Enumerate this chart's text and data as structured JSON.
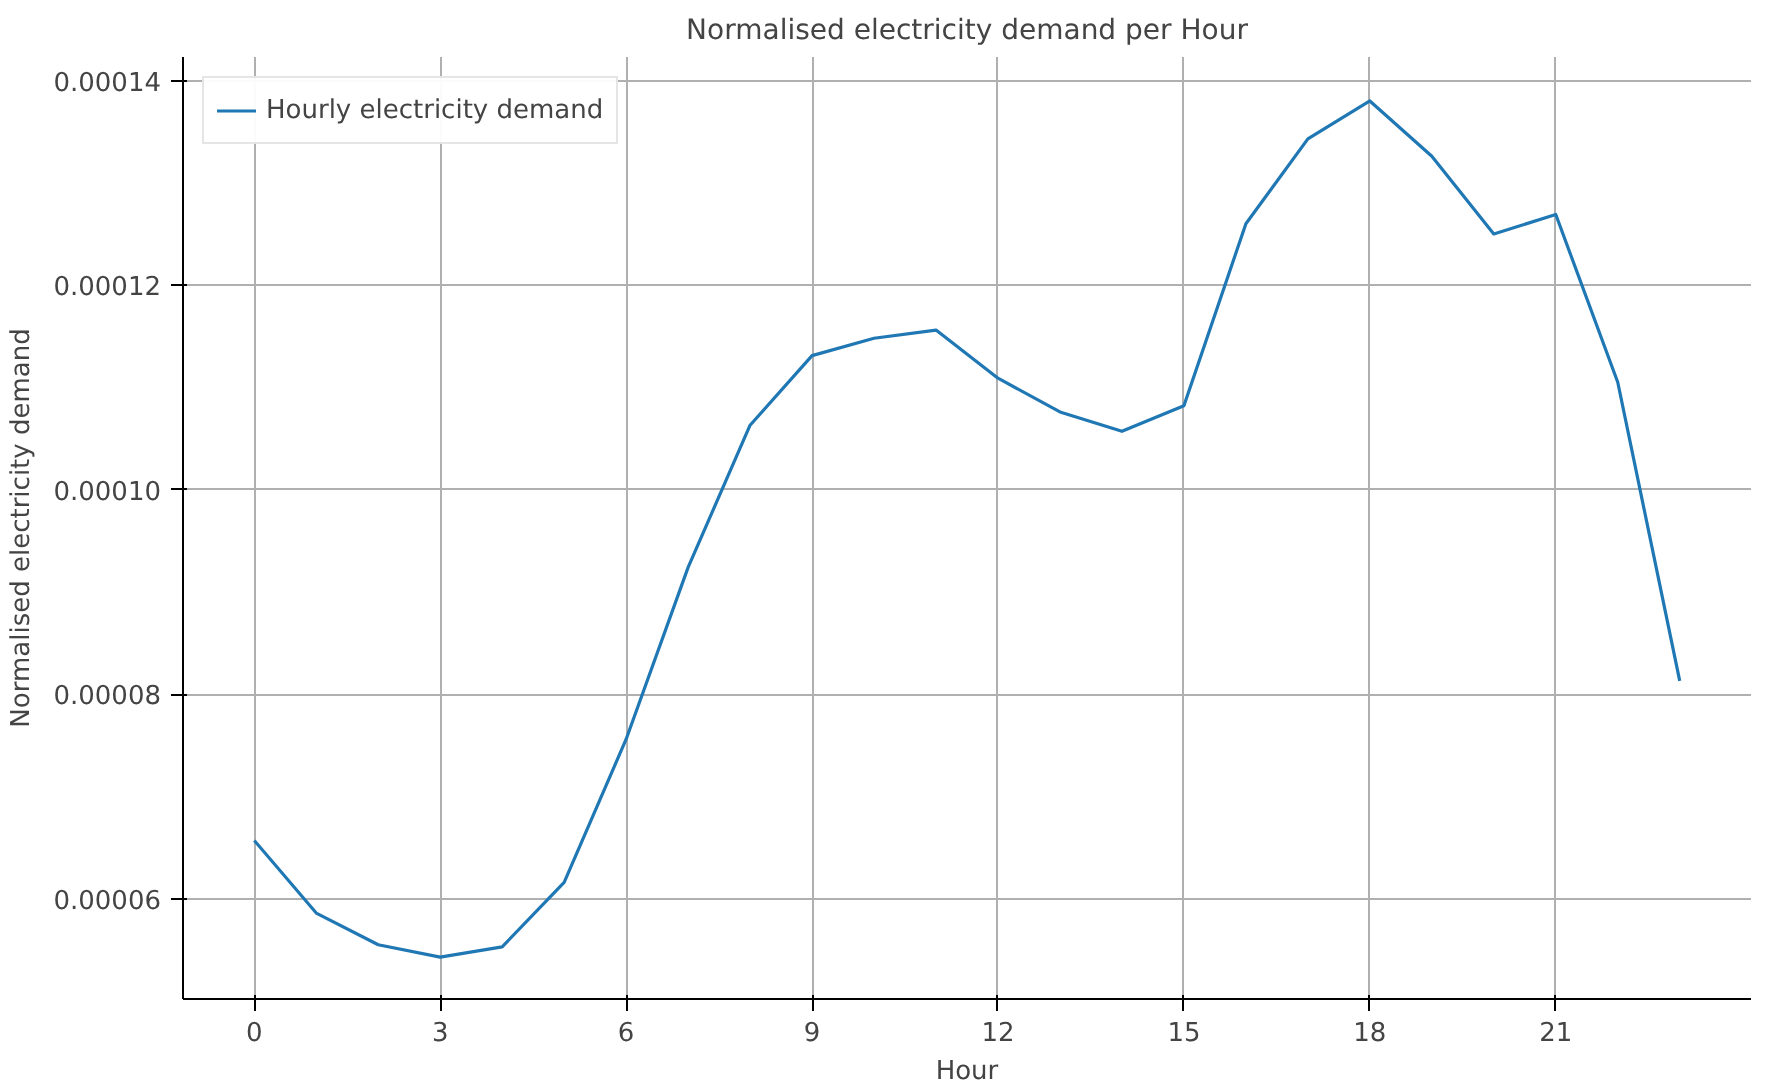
{
  "chart_data": {
    "type": "line",
    "title": "Normalised electricity demand per Hour",
    "xlabel": "Hour",
    "ylabel": "Normalised electricity demand",
    "x": [
      0,
      1,
      2,
      3,
      4,
      5,
      6,
      7,
      8,
      9,
      10,
      11,
      12,
      13,
      14,
      15,
      16,
      17,
      18,
      19,
      20,
      21,
      22,
      23
    ],
    "series": [
      {
        "name": "Hourly electricity demand",
        "color": "#1f77b4",
        "values": [
          6.57e-05,
          5.86e-05,
          5.55e-05,
          5.43e-05,
          5.53e-05,
          6.16e-05,
          7.56e-05,
          9.24e-05,
          0.0001063,
          0.0001131,
          0.0001148,
          0.0001156,
          0.0001109,
          0.0001076,
          0.0001057,
          0.0001082,
          0.000126,
          0.0001343,
          0.000138,
          0.0001326,
          0.000125,
          0.0001269,
          0.0001105,
          8.13e-05
        ]
      }
    ],
    "xlim": [
      -1.15,
      24.15
    ],
    "ylim": [
      5.02e-05,
      0.0001423
    ],
    "xticks": [
      0,
      3,
      6,
      9,
      12,
      15,
      18,
      21
    ],
    "yticks": [
      {
        "value": 6e-05,
        "label": "0.00006"
      },
      {
        "value": 8e-05,
        "label": "0.00008"
      },
      {
        "value": 0.0001,
        "label": "0.00010"
      },
      {
        "value": 0.00012,
        "label": "0.00012"
      },
      {
        "value": 0.00014,
        "label": "0.00014"
      }
    ],
    "grid": true,
    "legend": "top left",
    "line_style": "solid",
    "marker": "none"
  }
}
